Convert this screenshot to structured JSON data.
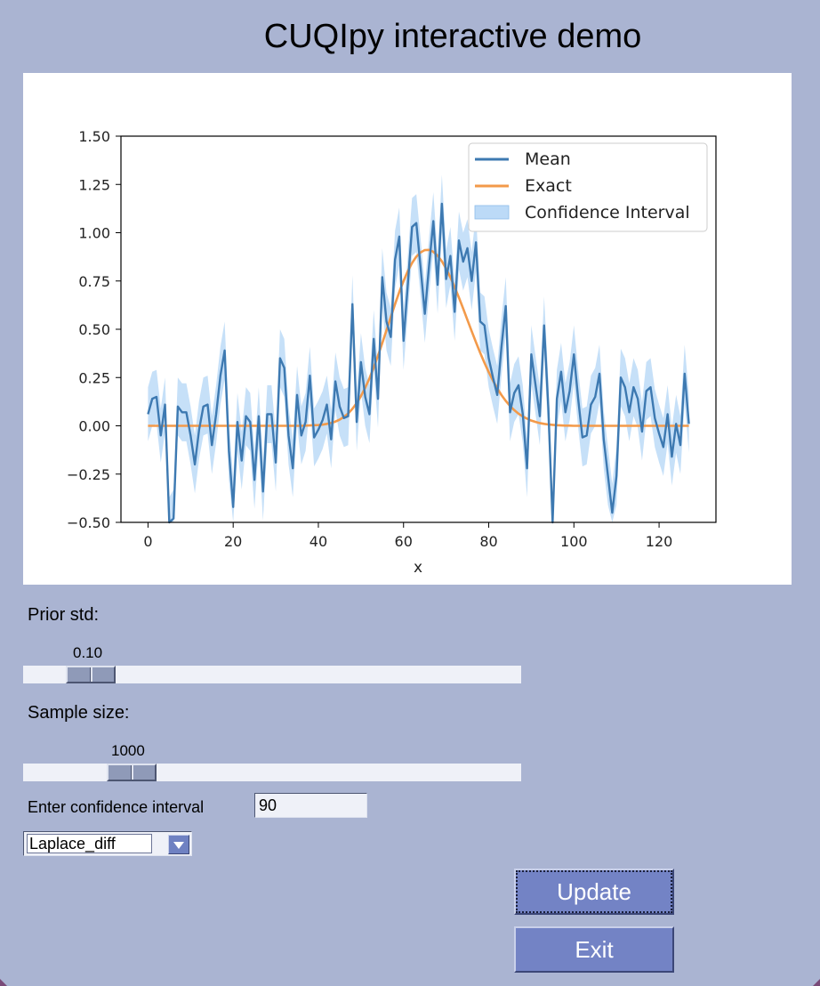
{
  "window": {
    "title": "CUQIpy interactive demo"
  },
  "chart_data": {
    "type": "line",
    "title": "",
    "xlabel": "x",
    "ylabel": "",
    "xlim": [
      -6.35,
      133.35
    ],
    "ylim": [
      -0.5,
      1.5
    ],
    "xticks": [
      0,
      20,
      40,
      60,
      80,
      100,
      120
    ],
    "yticks": [
      -0.5,
      -0.25,
      0.0,
      0.25,
      0.5,
      0.75,
      1.0,
      1.25,
      1.5
    ],
    "xtick_labels": [
      "0",
      "20",
      "40",
      "60",
      "80",
      "100",
      "120"
    ],
    "ytick_labels": [
      "−0.50",
      "−0.25",
      "0.00",
      "0.25",
      "0.50",
      "0.75",
      "1.00",
      "1.25",
      "1.50"
    ],
    "grid": false,
    "legend_position": "top-right",
    "legend": [
      "Mean",
      "Exact",
      "Confidence Interval"
    ],
    "colors": {
      "mean": "#3d79b1",
      "exact": "#f39a4a",
      "ci_fill": "#bcdaf7"
    },
    "x": [
      0,
      1,
      2,
      3,
      4,
      5,
      6,
      7,
      8,
      9,
      10,
      11,
      12,
      13,
      14,
      15,
      16,
      17,
      18,
      19,
      20,
      21,
      22,
      23,
      24,
      25,
      26,
      27,
      28,
      29,
      30,
      31,
      32,
      33,
      34,
      35,
      36,
      37,
      38,
      39,
      40,
      41,
      42,
      43,
      44,
      45,
      46,
      47,
      48,
      49,
      50,
      51,
      52,
      53,
      54,
      55,
      56,
      57,
      58,
      59,
      60,
      61,
      62,
      63,
      64,
      65,
      66,
      67,
      68,
      69,
      70,
      71,
      72,
      73,
      74,
      75,
      76,
      77,
      78,
      79,
      80,
      81,
      82,
      83,
      84,
      85,
      86,
      87,
      88,
      89,
      90,
      91,
      92,
      93,
      94,
      95,
      96,
      97,
      98,
      99,
      100,
      101,
      102,
      103,
      104,
      105,
      106,
      107,
      108,
      109,
      110,
      111,
      112,
      113,
      114,
      115,
      116,
      117,
      118,
      119,
      120,
      121,
      122,
      123,
      124,
      125,
      126,
      127
    ],
    "series": [
      {
        "name": "Mean",
        "values": [
          0.06,
          0.14,
          0.15,
          -0.05,
          0.11,
          -0.52,
          -0.48,
          0.1,
          0.07,
          0.07,
          -0.05,
          -0.2,
          -0.02,
          0.1,
          0.11,
          -0.1,
          0.06,
          0.26,
          0.39,
          -0.13,
          -0.42,
          0.02,
          -0.18,
          0.05,
          0.02,
          -0.28,
          0.05,
          -0.34,
          0.06,
          0.06,
          -0.19,
          0.35,
          0.3,
          -0.05,
          -0.22,
          0.16,
          -0.05,
          0.02,
          0.26,
          -0.06,
          -0.02,
          0.03,
          0.11,
          -0.07,
          0.23,
          0.1,
          0.04,
          0.05,
          0.63,
          0.02,
          0.33,
          0.15,
          0.06,
          0.45,
          0.14,
          0.77,
          0.54,
          0.46,
          0.86,
          0.98,
          0.44,
          0.73,
          1.03,
          1.05,
          0.82,
          0.58,
          0.83,
          1.06,
          0.73,
          1.15,
          0.76,
          0.88,
          0.59,
          0.96,
          0.85,
          0.92,
          0.75,
          0.95,
          0.54,
          0.52,
          0.35,
          0.25,
          0.16,
          0.41,
          0.62,
          0.07,
          0.17,
          0.21,
          0.06,
          -0.22,
          0.37,
          0.21,
          0.05,
          0.52,
          0.09,
          -0.52,
          0.14,
          0.28,
          0.07,
          0.18,
          0.37,
          0.14,
          -0.06,
          -0.05,
          0.11,
          0.15,
          0.27,
          -0.07,
          -0.26,
          -0.45,
          -0.26,
          0.25,
          0.2,
          0.07,
          0.2,
          0.14,
          -0.03,
          0.18,
          0.2,
          0.04,
          -0.04,
          -0.11,
          0.06,
          -0.16,
          0.01,
          -0.1,
          0.27,
          0.01
        ]
      },
      {
        "name": "Exact",
        "values": [
          0,
          0,
          0,
          0,
          0,
          0,
          0,
          0,
          0,
          0,
          0,
          0,
          0,
          0,
          0,
          0,
          0,
          0,
          0,
          0,
          0,
          0,
          0,
          0,
          0,
          0,
          0,
          0,
          0,
          0,
          0,
          0,
          0,
          0,
          0,
          0,
          0,
          0.001,
          0.002,
          0.003,
          0.004,
          0.006,
          0.01,
          0.015,
          0.022,
          0.032,
          0.046,
          0.064,
          0.088,
          0.118,
          0.154,
          0.197,
          0.246,
          0.302,
          0.363,
          0.428,
          0.495,
          0.563,
          0.63,
          0.693,
          0.75,
          0.801,
          0.843,
          0.876,
          0.898,
          0.91,
          0.911,
          0.901,
          0.881,
          0.852,
          0.814,
          0.769,
          0.719,
          0.664,
          0.607,
          0.548,
          0.49,
          0.433,
          0.378,
          0.326,
          0.278,
          0.234,
          0.194,
          0.159,
          0.129,
          0.103,
          0.081,
          0.063,
          0.048,
          0.037,
          0.027,
          0.02,
          0.014,
          0.01,
          0.007,
          0.005,
          0.003,
          0.002,
          0.001,
          0.001,
          0,
          0,
          0,
          0,
          0,
          0,
          0,
          0,
          0,
          0,
          0,
          0,
          0,
          0,
          0,
          0,
          0,
          0,
          0,
          0,
          0,
          0,
          0,
          0,
          0,
          0,
          0,
          0
        ]
      },
      {
        "name": "Confidence Interval",
        "lower": [
          -0.08,
          0.0,
          0.01,
          -0.19,
          -0.03,
          -0.67,
          -0.63,
          -0.05,
          -0.08,
          -0.08,
          -0.2,
          -0.35,
          -0.17,
          -0.05,
          -0.04,
          -0.25,
          -0.09,
          0.11,
          0.24,
          -0.28,
          -0.57,
          -0.13,
          -0.33,
          -0.1,
          -0.13,
          -0.43,
          -0.1,
          -0.49,
          -0.09,
          -0.09,
          -0.34,
          0.2,
          0.15,
          -0.2,
          -0.37,
          0.01,
          -0.2,
          -0.13,
          0.11,
          -0.21,
          -0.17,
          -0.12,
          -0.04,
          -0.22,
          0.08,
          -0.05,
          -0.11,
          -0.1,
          0.48,
          -0.13,
          0.18,
          0.0,
          -0.09,
          0.3,
          -0.01,
          0.62,
          0.39,
          0.31,
          0.71,
          0.83,
          0.29,
          0.58,
          0.88,
          0.9,
          0.67,
          0.43,
          0.68,
          0.91,
          0.58,
          1.0,
          0.61,
          0.73,
          0.44,
          0.81,
          0.7,
          0.77,
          0.6,
          0.8,
          0.39,
          0.37,
          0.2,
          0.1,
          0.01,
          0.26,
          0.47,
          -0.08,
          0.02,
          0.06,
          -0.09,
          -0.37,
          0.22,
          0.06,
          -0.1,
          0.37,
          -0.06,
          -0.67,
          -0.01,
          0.13,
          -0.08,
          0.03,
          0.22,
          -0.01,
          -0.21,
          -0.2,
          -0.04,
          0.0,
          0.12,
          -0.22,
          -0.41,
          -0.6,
          -0.41,
          0.1,
          0.05,
          -0.08,
          0.05,
          -0.01,
          -0.18,
          0.03,
          0.05,
          -0.11,
          -0.19,
          -0.26,
          -0.09,
          -0.31,
          -0.14,
          -0.25,
          0.12,
          -0.14
        ],
        "upper": [
          0.2,
          0.28,
          0.29,
          0.09,
          0.25,
          -0.37,
          -0.33,
          0.25,
          0.22,
          0.22,
          0.1,
          -0.05,
          0.13,
          0.25,
          0.26,
          0.05,
          0.21,
          0.41,
          0.54,
          0.02,
          -0.27,
          0.17,
          -0.03,
          0.2,
          0.17,
          -0.13,
          0.2,
          -0.19,
          0.21,
          0.21,
          -0.04,
          0.5,
          0.45,
          0.1,
          -0.07,
          0.31,
          0.1,
          0.17,
          0.41,
          0.09,
          0.13,
          0.18,
          0.26,
          0.08,
          0.38,
          0.25,
          0.19,
          0.2,
          0.78,
          0.17,
          0.48,
          0.3,
          0.21,
          0.6,
          0.29,
          0.92,
          0.69,
          0.61,
          1.01,
          1.13,
          0.59,
          0.88,
          1.18,
          1.2,
          0.97,
          0.73,
          0.98,
          1.21,
          0.88,
          1.3,
          0.91,
          1.03,
          0.74,
          1.11,
          1.0,
          1.07,
          0.9,
          1.1,
          0.69,
          0.67,
          0.5,
          0.4,
          0.31,
          0.56,
          0.77,
          0.22,
          0.32,
          0.36,
          0.21,
          -0.07,
          0.52,
          0.36,
          0.2,
          0.67,
          0.24,
          -0.37,
          0.29,
          0.43,
          0.22,
          0.33,
          0.52,
          0.29,
          0.09,
          0.1,
          0.26,
          0.3,
          0.42,
          0.08,
          -0.11,
          -0.3,
          -0.11,
          0.4,
          0.35,
          0.22,
          0.35,
          0.29,
          0.12,
          0.33,
          0.35,
          0.19,
          0.11,
          0.04,
          0.21,
          -0.01,
          0.16,
          0.05,
          0.42,
          0.16
        ]
      }
    ]
  },
  "controls": {
    "prior_std": {
      "label": "Prior std:",
      "value": "0.10",
      "fraction": 0.09
    },
    "sample_size": {
      "label": "Sample size:",
      "value": "1000",
      "fraction": 0.17
    },
    "confidence": {
      "label": "Enter confidence interval",
      "value": "90"
    },
    "operator": {
      "selected": "Laplace_diff"
    },
    "update_label": "Update",
    "exit_label": "Exit"
  }
}
